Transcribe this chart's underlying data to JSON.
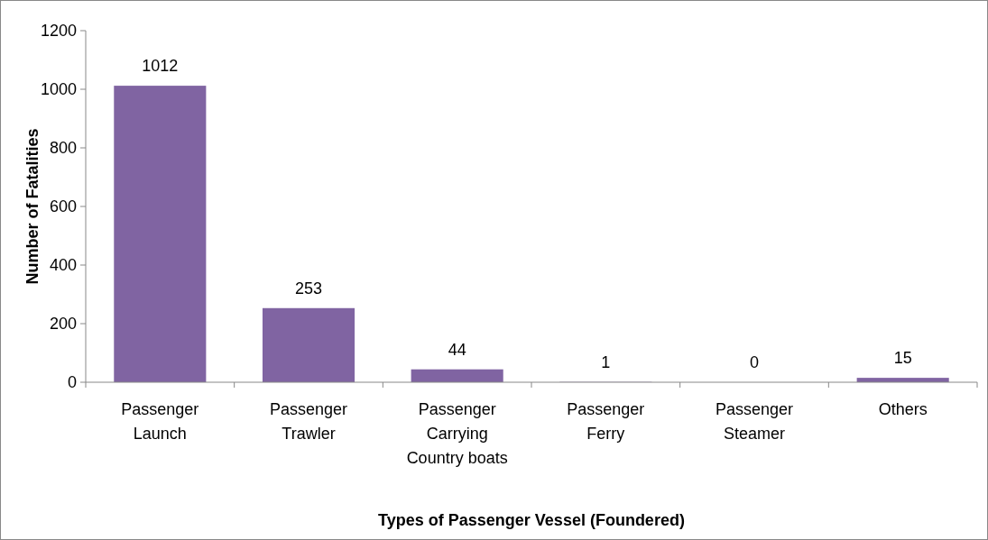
{
  "chart_data": {
    "type": "bar",
    "categories": [
      "Passenger Launch",
      "Passenger Trawler",
      "Passenger Carrying Country boats",
      "Passenger Ferry",
      "Passenger Steamer",
      "Others"
    ],
    "values": [
      1012,
      253,
      44,
      1,
      0,
      15
    ],
    "color": "#8064a2",
    "xlabel": "Types of Passenger Vessel (Foundered)",
    "ylabel": "Number of Fatalities",
    "ylim": [
      0,
      1200
    ],
    "yticks": [
      0,
      200,
      400,
      600,
      800,
      1000,
      1200
    ],
    "data_labels": true,
    "grid": false
  }
}
